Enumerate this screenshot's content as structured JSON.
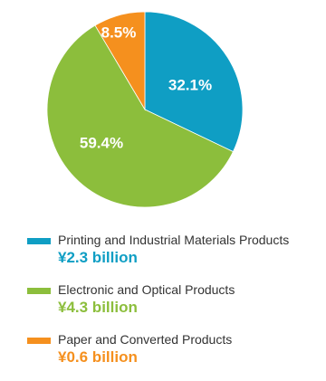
{
  "chart_data": {
    "type": "pie",
    "title": "",
    "slices": [
      {
        "label": "Printing and Industrial Materials Products",
        "value": 32.1,
        "value_label": "32.1%",
        "amount": "¥2.3 billion",
        "color": "#0f9ec4"
      },
      {
        "label": "Electronic and Optical Products",
        "value": 59.4,
        "value_label": "59.4%",
        "amount": "¥4.3 billion",
        "color": "#8cbe3c"
      },
      {
        "label": "Paper and Converted Products",
        "value": 8.5,
        "value_label": "8.5%",
        "amount": "¥0.6 billion",
        "color": "#f5901e"
      }
    ],
    "start_angle_deg": 0,
    "direction": "clockwise",
    "legend_position": "bottom"
  },
  "legend": {
    "items": [
      {
        "label": "Printing and Industrial Materials Products",
        "amount": "¥2.3 billion"
      },
      {
        "label": "Electronic and Optical Products",
        "amount": "¥4.3 billion"
      },
      {
        "label": "Paper and Converted Products",
        "amount": "¥0.6 billion"
      }
    ]
  }
}
